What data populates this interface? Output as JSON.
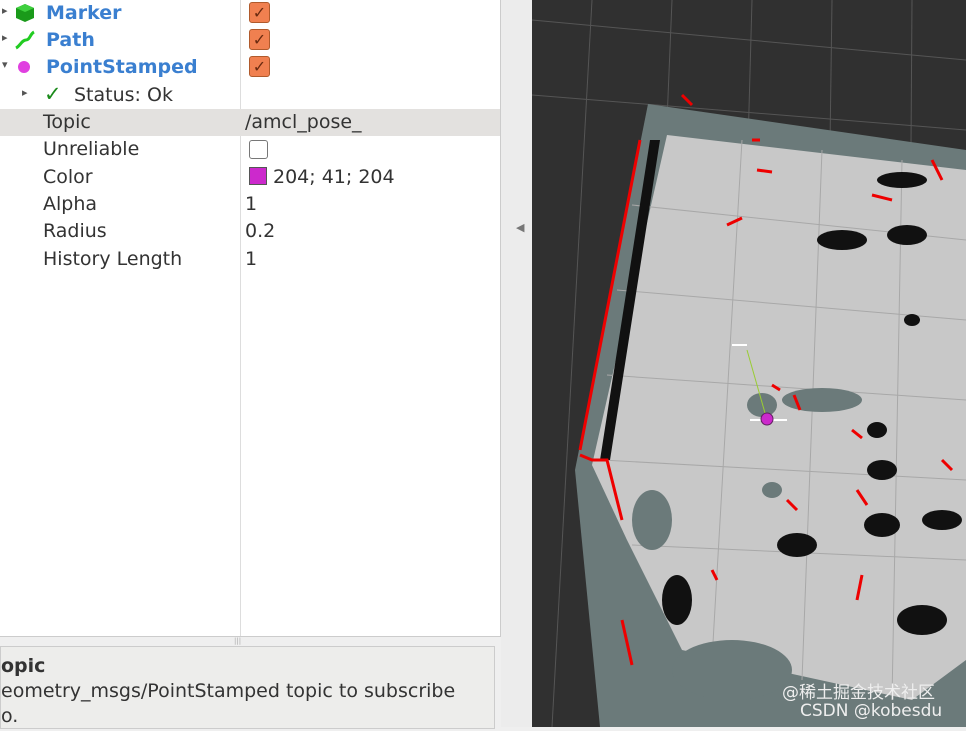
{
  "displays": [
    {
      "name": "Marker",
      "icon": "cube-icon",
      "checked": true,
      "expanded": false
    },
    {
      "name": "Path",
      "icon": "path-icon",
      "checked": true,
      "expanded": false
    },
    {
      "name": "PointStamped",
      "icon": "point-icon",
      "checked": true,
      "expanded": true
    }
  ],
  "status": "Status: Ok",
  "properties": [
    {
      "label": "Topic",
      "value": "/amcl_pose_"
    },
    {
      "label": "Unreliable",
      "value": ""
    },
    {
      "label": "Color",
      "value": "204; 41; 204"
    },
    {
      "label": "Alpha",
      "value": "1"
    },
    {
      "label": "Radius",
      "value": "0.2"
    },
    {
      "label": "History Length",
      "value": "1"
    }
  ],
  "color_swatch": "#cc29cc",
  "description": {
    "title": "opic",
    "text": "eometry_msgs/PointStamped topic to subscribe",
    "text2": "o."
  },
  "watermark": [
    "@稀土掘金技术社区",
    "CSDN @kobesdu"
  ]
}
